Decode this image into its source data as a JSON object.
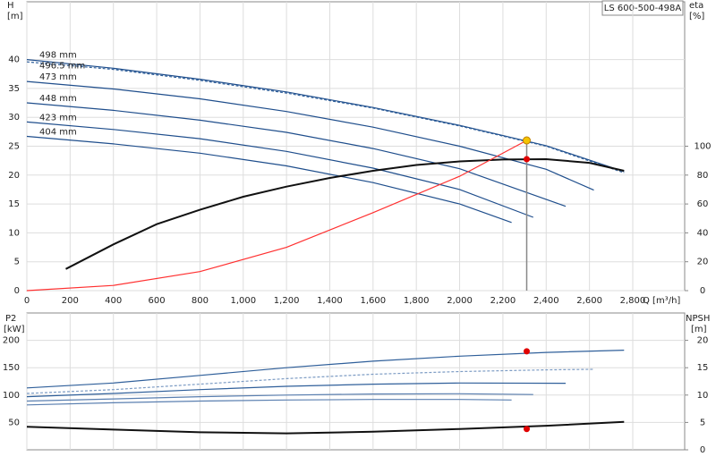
{
  "chart_data": [
    {
      "type": "line",
      "title": "LS 600-500-498A",
      "ylabel": "H",
      "yunit": "[m]",
      "y2label": "eta",
      "y2unit": "[%]",
      "xlabel": "Q [m³/h]",
      "xlim": [
        0,
        3040
      ],
      "xticks": [
        0,
        200,
        400,
        600,
        800,
        {
          "value": 1000,
          "label": "1,000"
        },
        {
          "value": 1200,
          "label": "1,200"
        },
        {
          "value": 1400,
          "label": "1,400"
        },
        {
          "value": 1600,
          "label": "1,600"
        },
        {
          "value": 1800,
          "label": "1,800"
        },
        {
          "value": 2000,
          "label": "2,000"
        },
        {
          "value": 2200,
          "label": "2,200"
        },
        {
          "value": 2400,
          "label": "2,400"
        },
        {
          "value": 2600,
          "label": "2,600"
        },
        {
          "value": 2800,
          "label": "2,800"
        }
      ],
      "ylim": [
        0,
        50
      ],
      "yticks": [
        0,
        5,
        10,
        15,
        20,
        25,
        30,
        35,
        40
      ],
      "y2lim": [
        0,
        200
      ],
      "y2ticks": [
        0,
        20,
        40,
        60,
        80,
        100
      ],
      "grid": true,
      "series": [
        {
          "name": "498 mm",
          "color": "#1f4e8c",
          "x": [
            0,
            400,
            800,
            1200,
            1600,
            2000,
            2400,
            2760
          ],
          "values": [
            40,
            38.5,
            36.6,
            34.4,
            31.7,
            28.6,
            25.1,
            20.6
          ]
        },
        {
          "name": "496.5 mm",
          "color": "#2f5f9a",
          "dash": true,
          "x": [
            0,
            400,
            800,
            1200,
            1600,
            2000,
            2400,
            2760
          ],
          "values": [
            39.6,
            38.3,
            36.4,
            34.2,
            31.6,
            28.5,
            25,
            20.4
          ]
        },
        {
          "name": "473 mm",
          "color": "#1f4e8c",
          "x": [
            0,
            400,
            800,
            1200,
            1600,
            2000,
            2400,
            2620
          ],
          "values": [
            36.2,
            34.9,
            33.2,
            31,
            28.3,
            25,
            21,
            17.4
          ]
        },
        {
          "name": "448 mm",
          "color": "#1f4e8c",
          "x": [
            0,
            400,
            800,
            1200,
            1600,
            2000,
            2490
          ],
          "values": [
            32.5,
            31.2,
            29.5,
            27.4,
            24.6,
            21.1,
            14.6
          ]
        },
        {
          "name": "423 mm",
          "color": "#1f4e8c",
          "x": [
            0,
            400,
            800,
            1200,
            1600,
            2000,
            2340
          ],
          "values": [
            29.2,
            27.9,
            26.3,
            24.1,
            21.2,
            17.5,
            12.7
          ]
        },
        {
          "name": "404 mm",
          "color": "#1f4e8c",
          "x": [
            0,
            400,
            800,
            1200,
            1600,
            2000,
            2240
          ],
          "values": [
            26.7,
            25.4,
            23.8,
            21.6,
            18.7,
            15,
            11.8
          ]
        },
        {
          "color": "#111111",
          "axis": "y2",
          "x": [
            180,
            400,
            600,
            800,
            1000,
            1200,
            1400,
            1600,
            1800,
            2000,
            2200,
            2400,
            2600,
            2760
          ],
          "values": [
            15,
            32,
            46,
            56,
            65,
            72,
            78,
            83,
            87,
            89.5,
            90.8,
            91,
            88.5,
            83
          ]
        },
        {
          "color": "#ff3030",
          "x": [
            0,
            400,
            800,
            1200,
            1600,
            2000,
            2310
          ],
          "values": [
            0,
            0.9,
            3.3,
            7.5,
            13.5,
            19.8,
            26
          ]
        },
        {
          "color": "#f5c400",
          "marker": "circle",
          "dropline": true,
          "x": [
            2310
          ],
          "values": [
            26
          ]
        },
        {
          "color": "#e00000",
          "marker": "circle",
          "axis": "y2",
          "x": [
            2310
          ],
          "values": [
            91
          ]
        }
      ]
    },
    {
      "type": "line",
      "ylabel": "P2",
      "yunit": "[kW]",
      "y2label": "NPSH",
      "y2unit": "[m]",
      "ylim": [
        0,
        250
      ],
      "yticks": [
        50,
        100,
        150,
        200
      ],
      "y2lim": [
        0,
        25
      ],
      "y2ticks": [
        0,
        5,
        10,
        15,
        20
      ],
      "grid": true,
      "series": [
        {
          "color": "#2f5f9a",
          "x": [
            0,
            400,
            800,
            1200,
            1600,
            2000,
            2400,
            2760
          ],
          "values": [
            113,
            122,
            136,
            150,
            162,
            171,
            178,
            182
          ]
        },
        {
          "color": "#7d9cc4",
          "dash": true,
          "x": [
            0,
            400,
            800,
            1200,
            1600,
            2000,
            2400,
            2620
          ],
          "values": [
            103,
            110,
            120,
            130,
            138,
            143,
            146,
            147
          ]
        },
        {
          "color": "#2f5f9a",
          "x": [
            0,
            400,
            800,
            1200,
            1600,
            2000,
            2490
          ],
          "values": [
            97,
            103,
            110,
            116,
            120,
            122,
            121.5
          ]
        },
        {
          "color": "#5a7fb0",
          "x": [
            0,
            400,
            800,
            1200,
            1600,
            2000,
            2340
          ],
          "values": [
            89,
            93,
            97,
            100,
            102,
            102.5,
            101
          ]
        },
        {
          "color": "#5a7fb0",
          "x": [
            0,
            400,
            800,
            1200,
            1600,
            2000,
            2240
          ],
          "values": [
            82,
            86,
            89,
            91,
            92,
            92,
            91
          ]
        },
        {
          "color": "#111111",
          "axis": "y2",
          "x": [
            0,
            400,
            800,
            1200,
            1600,
            2000,
            2400,
            2760
          ],
          "values": [
            4.2,
            3.7,
            3.2,
            3,
            3.3,
            3.8,
            4.4,
            5.1
          ]
        },
        {
          "color": "#e00000",
          "marker": "circle",
          "x": [
            2310
          ],
          "values": [
            180
          ]
        },
        {
          "color": "#e00000",
          "marker": "circle",
          "axis": "y2",
          "x": [
            2310
          ],
          "values": [
            3.8
          ]
        }
      ]
    }
  ]
}
